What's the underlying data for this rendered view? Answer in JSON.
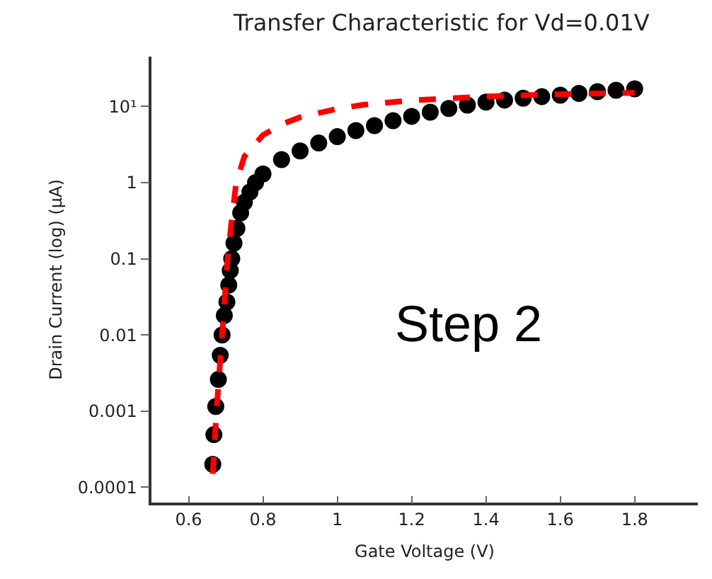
{
  "chart_data": {
    "type": "scatter",
    "title": "Transfer Characteristic for Vd=0.01V",
    "xlabel": "Gate Voltage (V)",
    "ylabel": "Drain Current (log) (μA)",
    "log": "y",
    "grid": false,
    "marker": "circle",
    "xlim": [
      0.5,
      1.97
    ],
    "xticks": [
      0.6,
      0.8,
      1,
      1.2,
      1.4,
      1.6,
      1.8
    ],
    "ylim": [
      6.3e-05,
      45
    ],
    "yticks": [
      0.0001,
      0.001,
      0.01,
      0.1,
      1,
      {
        "value": 10,
        "label": "10¹"
      }
    ],
    "annotations": [
      "Step 2"
    ],
    "series": [
      {
        "color": "#000000",
        "x": [
          0.665,
          0.668,
          0.673,
          0.68,
          0.685,
          0.69,
          0.696,
          0.703,
          0.708,
          0.712,
          0.716,
          0.722,
          0.73,
          0.74,
          0.75,
          0.765,
          0.78,
          0.8,
          0.85,
          0.9,
          0.95,
          1.0,
          1.05,
          1.1,
          1.15,
          1.2,
          1.25,
          1.3,
          1.35,
          1.4,
          1.45,
          1.5,
          1.55,
          1.6,
          1.65,
          1.7,
          1.75,
          1.8
        ],
        "values": [
          0.0002,
          0.00049,
          0.00115,
          0.0026,
          0.0054,
          0.01,
          0.018,
          0.027,
          0.045,
          0.07,
          0.1,
          0.16,
          0.25,
          0.4,
          0.55,
          0.75,
          1.0,
          1.3,
          2.0,
          2.6,
          3.3,
          4.0,
          4.8,
          5.6,
          6.5,
          7.4,
          8.4,
          9.4,
          10.4,
          11.4,
          12.1,
          12.8,
          13.4,
          14,
          14.8,
          15.6,
          16.3,
          17
        ]
      },
      {
        "type": "line",
        "color": "#ff0000",
        "line_style": "dashed",
        "marker": "none",
        "x": [
          0.665,
          0.675,
          0.69,
          0.705,
          0.715,
          0.728,
          0.75,
          0.8,
          0.85,
          0.9,
          1.0,
          1.07,
          1.2,
          1.4,
          1.6,
          1.8
        ],
        "values": [
          0.00015,
          0.001,
          0.01,
          0.1,
          0.3,
          1,
          2.2,
          4.2,
          5.8,
          7.2,
          9.3,
          10.5,
          12,
          13.5,
          14.5,
          15
        ]
      }
    ]
  }
}
